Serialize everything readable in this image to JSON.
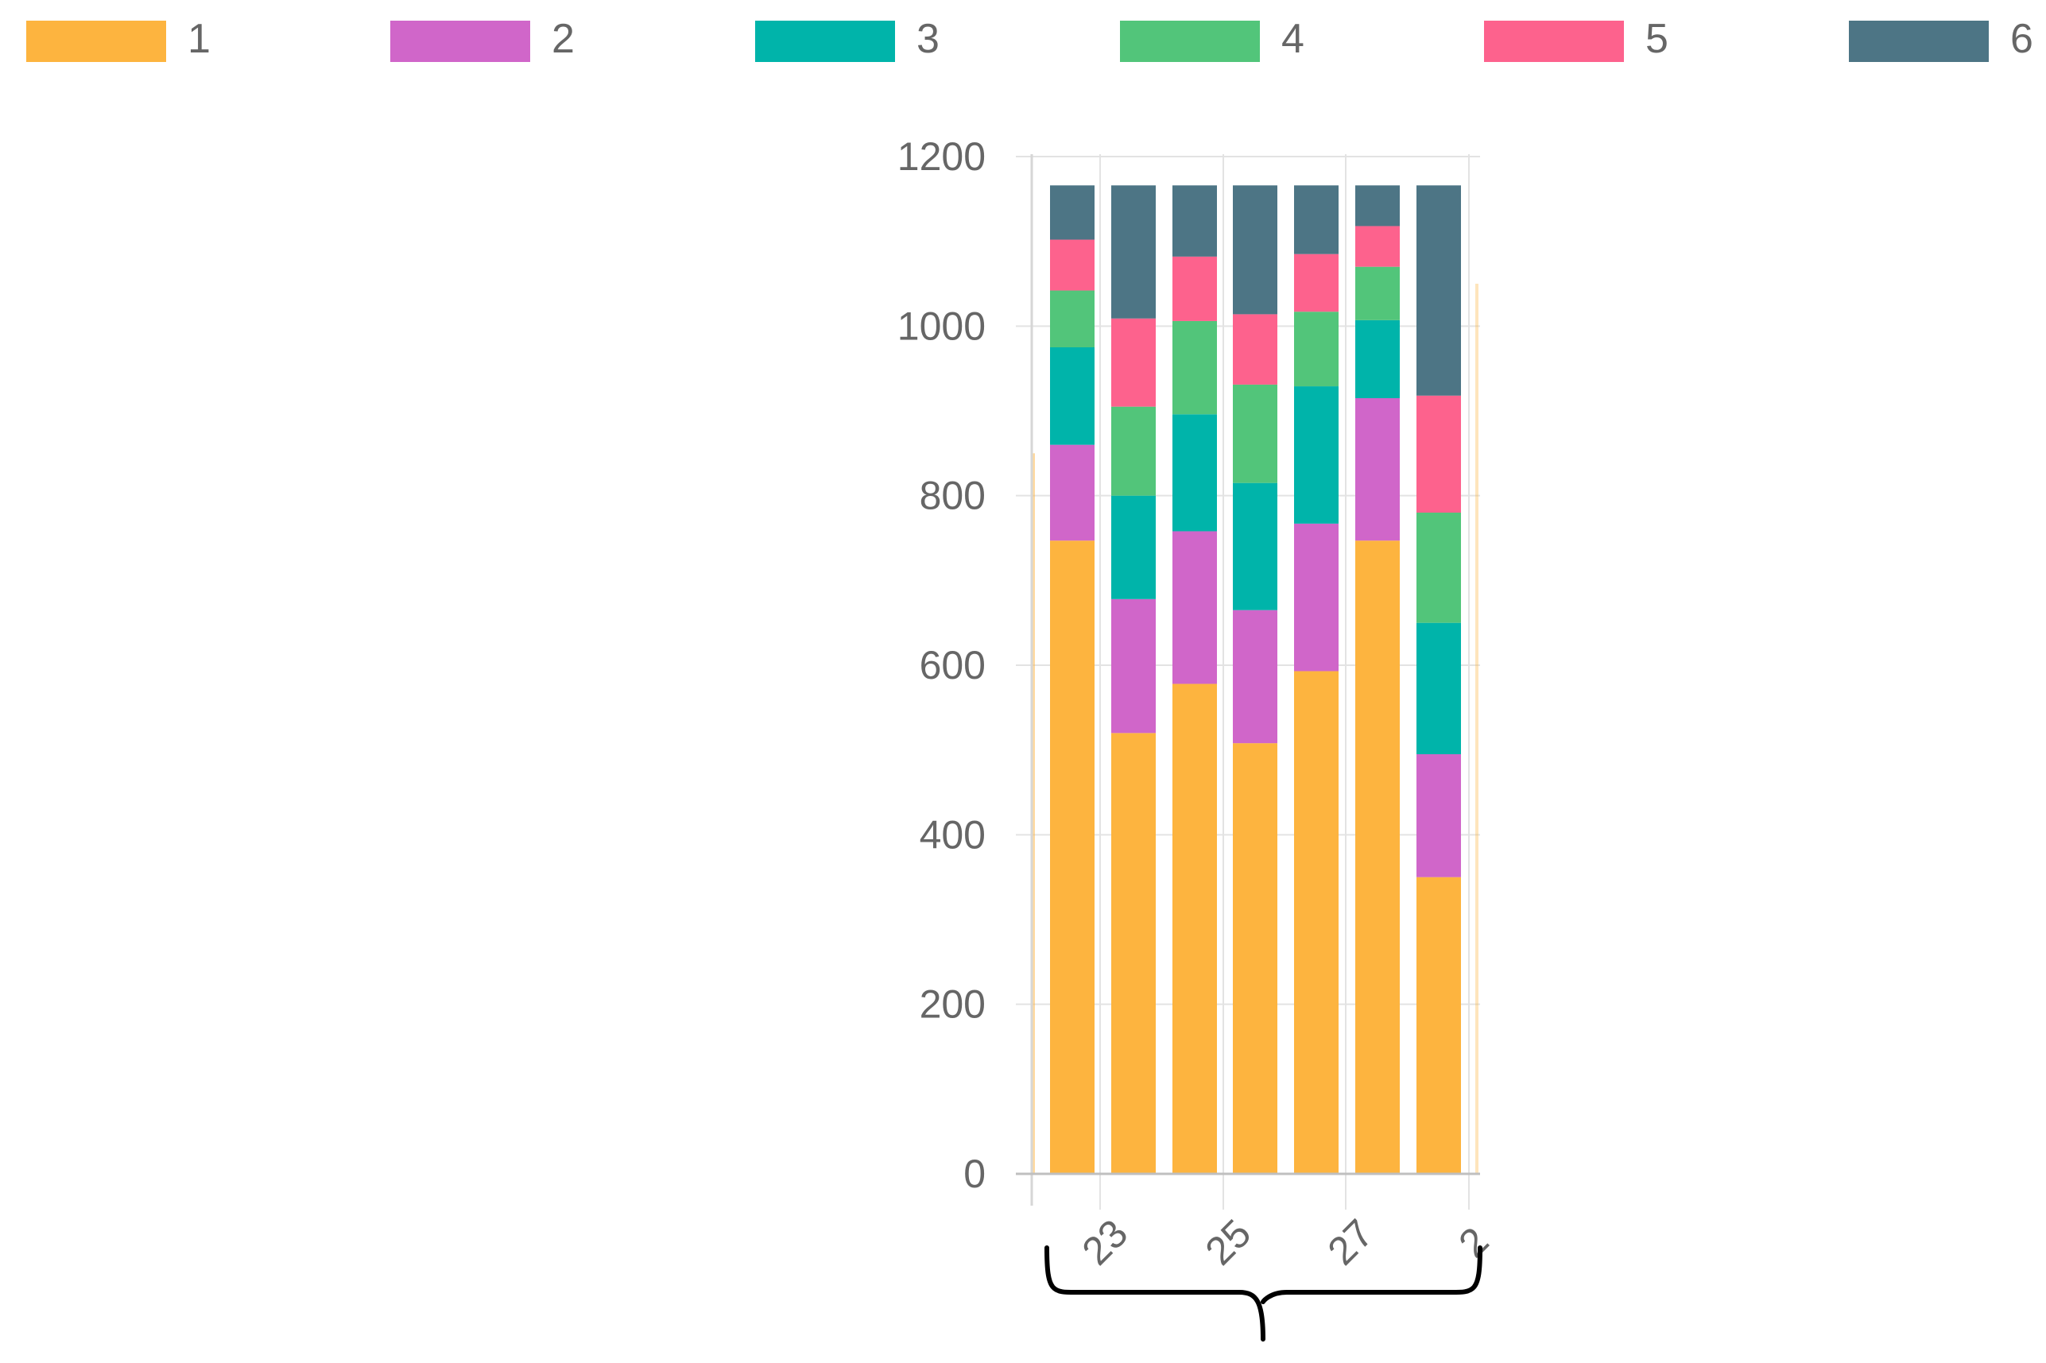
{
  "chart_data": {
    "type": "bar",
    "stacked": true,
    "title": "",
    "xlabel": "",
    "ylabel": "",
    "ylim": [
      0,
      1200
    ],
    "y_ticks": [
      "0",
      "200",
      "400",
      "600",
      "800",
      "1000",
      "1200"
    ],
    "x_ticks": [
      "23",
      "25",
      "27",
      "2"
    ],
    "grid": true,
    "legend_position": "top",
    "series": [
      {
        "name": "1",
        "color": "#fdb43f",
        "values": [
          747,
          520,
          578,
          508,
          593,
          747,
          350
        ]
      },
      {
        "name": "2",
        "color": "#d066c9",
        "values": [
          113,
          158,
          180,
          157,
          174,
          168,
          145
        ]
      },
      {
        "name": "3",
        "color": "#00b4aa",
        "values": [
          115,
          122,
          138,
          150,
          162,
          92,
          155
        ]
      },
      {
        "name": "4",
        "color": "#52c57a",
        "values": [
          67,
          105,
          110,
          116,
          88,
          63,
          130
        ]
      },
      {
        "name": "5",
        "color": "#fd628d",
        "values": [
          60,
          104,
          76,
          83,
          68,
          48,
          138
        ]
      },
      {
        "name": "6",
        "color": "#4d7585",
        "values": [
          64,
          157,
          84,
          152,
          81,
          48,
          248
        ]
      }
    ],
    "bar_count": 7
  }
}
